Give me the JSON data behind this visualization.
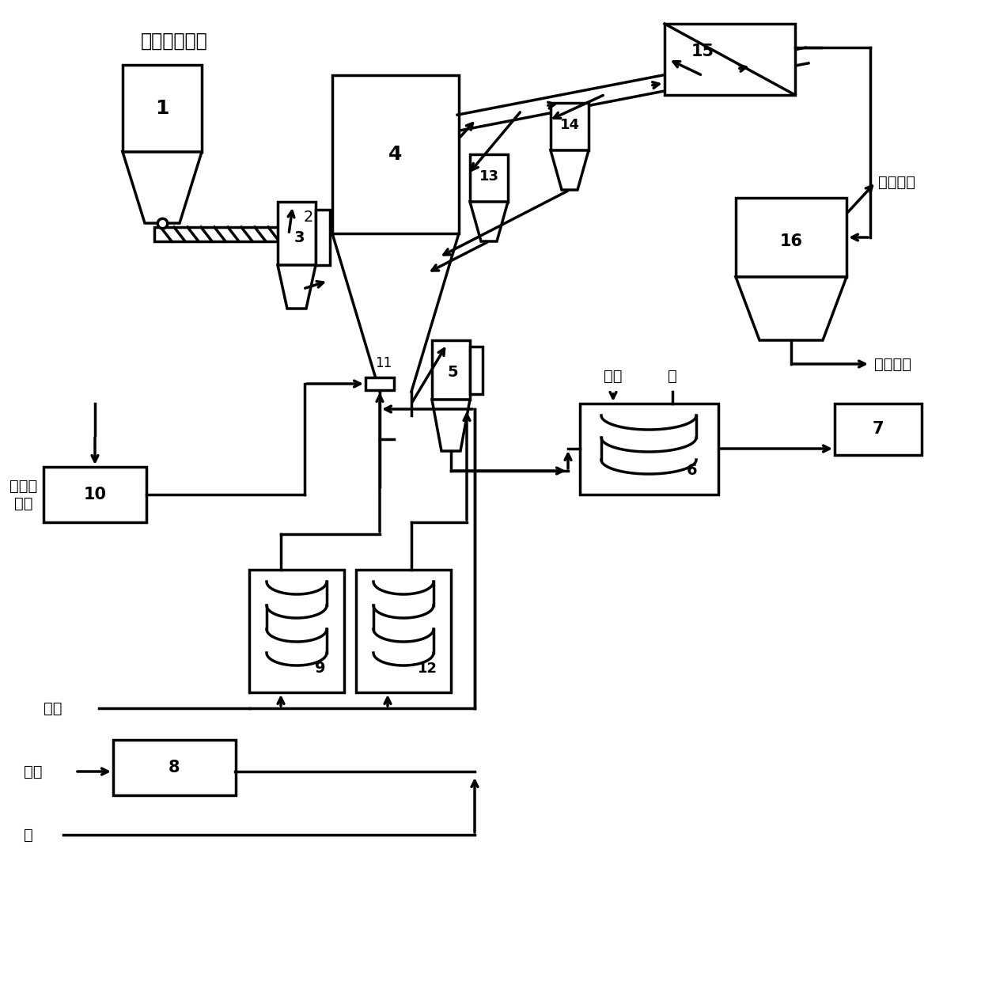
{
  "bg": "#ffffff",
  "lc": "#000000",
  "lw": 2.5,
  "labels": {
    "title": "正极材料粉体",
    "precursor": "前驱体\n溶液",
    "carrier_gas": "载气",
    "fuel_gas": "煎气",
    "water": "水",
    "exhaust": "废气排放",
    "hcl_solution": "盐酸溶液",
    "steam": "蘸汽",
    "water2": "水"
  }
}
